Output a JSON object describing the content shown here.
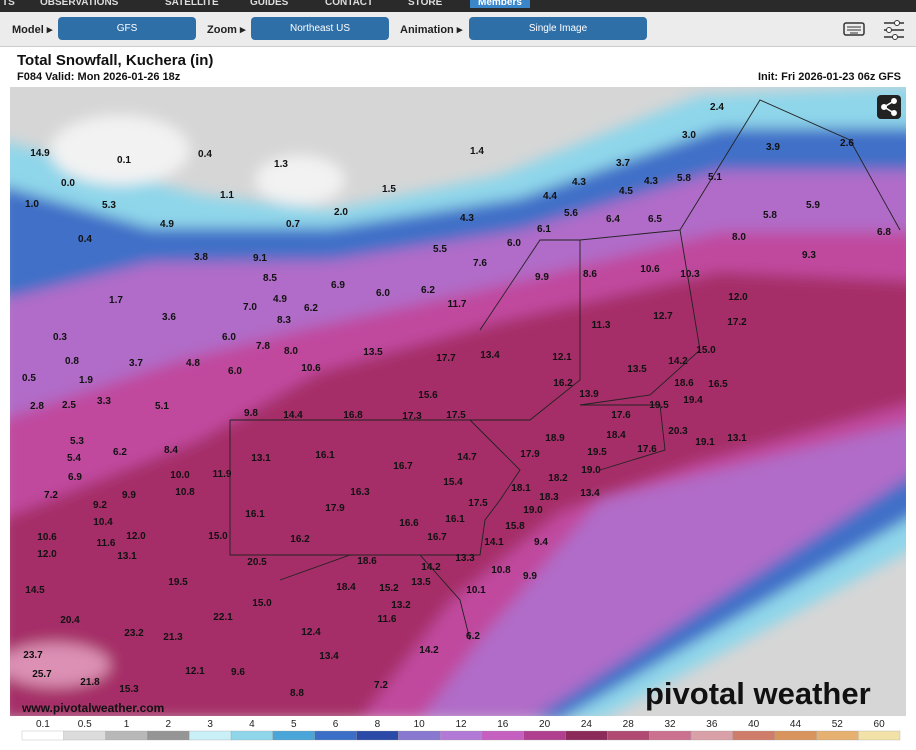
{
  "nav": {
    "items": [
      "TS",
      "OBSERVATIONS",
      "SATELLITE",
      "GUIDES",
      "CONTACT",
      "STORE",
      "Members"
    ]
  },
  "controls": {
    "model_label": "Model ▸",
    "model": "GFS",
    "zoom_label": "Zoom ▸",
    "zoom": "Northeast US",
    "animation_label": "Animation ▸",
    "animation": "Single Image"
  },
  "map": {
    "title": "Total Snowfall, Kuchera (in)",
    "valid": "F084 Valid: Mon 2026-01-26 18z",
    "init": "Init: Fri 2026-01-23 06z GFS",
    "watermark": "www.pivotalweather.com",
    "logo": "pivotal weather",
    "labels": [
      "14.9",
      "0.1",
      "0.4",
      "1.3",
      "1.4",
      "2.4",
      "3.0",
      "3.9",
      "2.6",
      "3.7",
      "4.3",
      "5.8",
      "5.1",
      "4.3",
      "4.5",
      "0.0",
      "1.1",
      "1.5",
      "4.4",
      "1.0",
      "5.3",
      "2.0",
      "4.3",
      "5.6",
      "6.4",
      "6.5",
      "5.8",
      "5.9",
      "0.7",
      "4.9",
      "6.1",
      "6.8",
      "0.4",
      "8.0",
      "5.5",
      "6.0",
      "3.8",
      "9.1",
      "7.6",
      "9.3",
      "8.5",
      "9.9",
      "8.6",
      "10.6",
      "10.3",
      "6.9",
      "6.0",
      "6.2",
      "12.0",
      "4.9",
      "1.7",
      "7.0",
      "6.2",
      "11.7",
      "12.7",
      "17.2",
      "3.6",
      "8.3",
      "11.3",
      "0.3",
      "6.0",
      "7.8",
      "8.0",
      "13.5",
      "17.7",
      "13.4",
      "12.1",
      "15.0",
      "0.8",
      "3.7",
      "4.8",
      "10.6",
      "14.2",
      "13.5",
      "0.5",
      "1.9",
      "6.0",
      "15.6",
      "16.2",
      "18.6",
      "16.5",
      "13.9",
      "2.8",
      "2.5",
      "3.3",
      "5.1",
      "19.5",
      "19.4",
      "9.8",
      "14.4",
      "16.8",
      "17.3",
      "17.5",
      "17.6",
      "5.3",
      "8.4",
      "20.3",
      "19.1",
      "13.1",
      "18.4",
      "18.9",
      "5.4",
      "6.2",
      "13.1",
      "16.1",
      "14.7",
      "17.9",
      "19.5",
      "17.6",
      "6.9",
      "10.0",
      "11.9",
      "16.7",
      "15.4",
      "19.0",
      "7.2",
      "9.2",
      "9.9",
      "10.8",
      "16.3",
      "18.1",
      "18.2",
      "13.4",
      "18.3",
      "10.4",
      "17.9",
      "17.5",
      "19.0",
      "16.1",
      "16.6",
      "16.1",
      "15.8",
      "10.6",
      "11.6",
      "12.0",
      "15.0",
      "16.2",
      "16.7",
      "14.1",
      "9.4",
      "12.0",
      "13.1",
      "20.5",
      "18.6",
      "13.3",
      "14.2",
      "10.8",
      "9.9",
      "13.5",
      "19.5",
      "18.4",
      "15.2",
      "10.1",
      "14.5",
      "15.0",
      "13.2",
      "22.1",
      "11.6",
      "20.4",
      "23.2",
      "21.3",
      "12.4",
      "6.2",
      "14.2",
      "13.4",
      "23.7",
      "9.6",
      "12.1",
      "25.7",
      "21.8",
      "15.3",
      "7.2",
      "8.8"
    ]
  },
  "colorbar": {
    "ticks": [
      "0.1",
      "0.5",
      "1",
      "2",
      "3",
      "4",
      "5",
      "6",
      "8",
      "10",
      "12",
      "16",
      "20",
      "24",
      "28",
      "32",
      "36",
      "40",
      "44",
      "52",
      "60"
    ],
    "colors": [
      "#ffffff",
      "#dcdcdc",
      "#b8b8b8",
      "#959595",
      "#c8f0f6",
      "#8fd6ea",
      "#4aa5d8",
      "#3b6fc7",
      "#2b4aa8",
      "#8878d0",
      "#b27ad6",
      "#c560c0",
      "#b0408f",
      "#8c2a5a",
      "#b04a72",
      "#cc7090",
      "#d9a0a8",
      "#cf7d6a",
      "#d9935c",
      "#e6b070",
      "#f3e2a8"
    ]
  }
}
